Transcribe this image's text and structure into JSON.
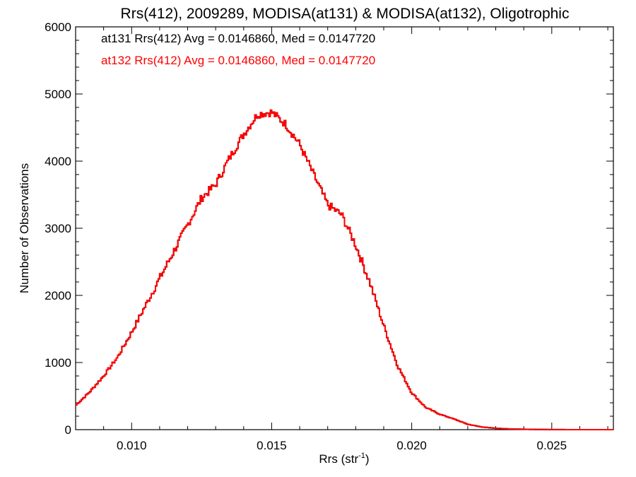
{
  "chart_data": {
    "type": "histogram",
    "title": "Rrs(412), 2009289, MODISA(at131) & MODISA(at132), Oligotrophic",
    "xlabel_main": "Rrs (str",
    "xlabel_sup": "-1",
    "xlabel_close": ")",
    "ylabel": "Number of Observations",
    "xlim": [
      0.008,
      0.0272
    ],
    "ylim": [
      0,
      6000
    ],
    "x_ticks": [
      0.01,
      0.015,
      0.02,
      0.025
    ],
    "x_tick_labels": [
      "0.010",
      "0.015",
      "0.020",
      "0.025"
    ],
    "y_ticks": [
      0,
      1000,
      2000,
      3000,
      4000,
      5000,
      6000
    ],
    "y_tick_labels": [
      "0",
      "1000",
      "2000",
      "3000",
      "4000",
      "5000",
      "6000"
    ],
    "legend": [
      {
        "text": "at131 Rrs(412) Avg = 0.0146860, Med = 0.0147720",
        "color": "#000000"
      },
      {
        "text": "at132 Rrs(412) Avg = 0.0146860, Med = 0.0147720",
        "color": "#ff0000"
      }
    ],
    "series": [
      {
        "color": "#ff0000",
        "note_overlap": "at131 series is identical and drawn underneath",
        "x": [
          0.008,
          0.0085,
          0.009,
          0.0095,
          0.01,
          0.0105,
          0.011,
          0.0115,
          0.012,
          0.0125,
          0.013,
          0.0135,
          0.014,
          0.0145,
          0.015,
          0.0155,
          0.016,
          0.0165,
          0.017,
          0.0175,
          0.018,
          0.0185,
          0.019,
          0.0195,
          0.02,
          0.0205,
          0.021,
          0.0215,
          0.022,
          0.0225,
          0.023,
          0.0235,
          0.024,
          0.0245,
          0.025,
          0.026,
          0.0272
        ],
        "y": [
          360,
          560,
          800,
          1080,
          1450,
          1850,
          2250,
          2650,
          3050,
          3450,
          3650,
          4050,
          4400,
          4700,
          4730,
          4550,
          4250,
          3800,
          3350,
          3200,
          2750,
          2200,
          1550,
          950,
          550,
          330,
          230,
          160,
          80,
          40,
          20,
          10,
          6,
          3,
          1,
          0,
          0
        ]
      }
    ]
  }
}
